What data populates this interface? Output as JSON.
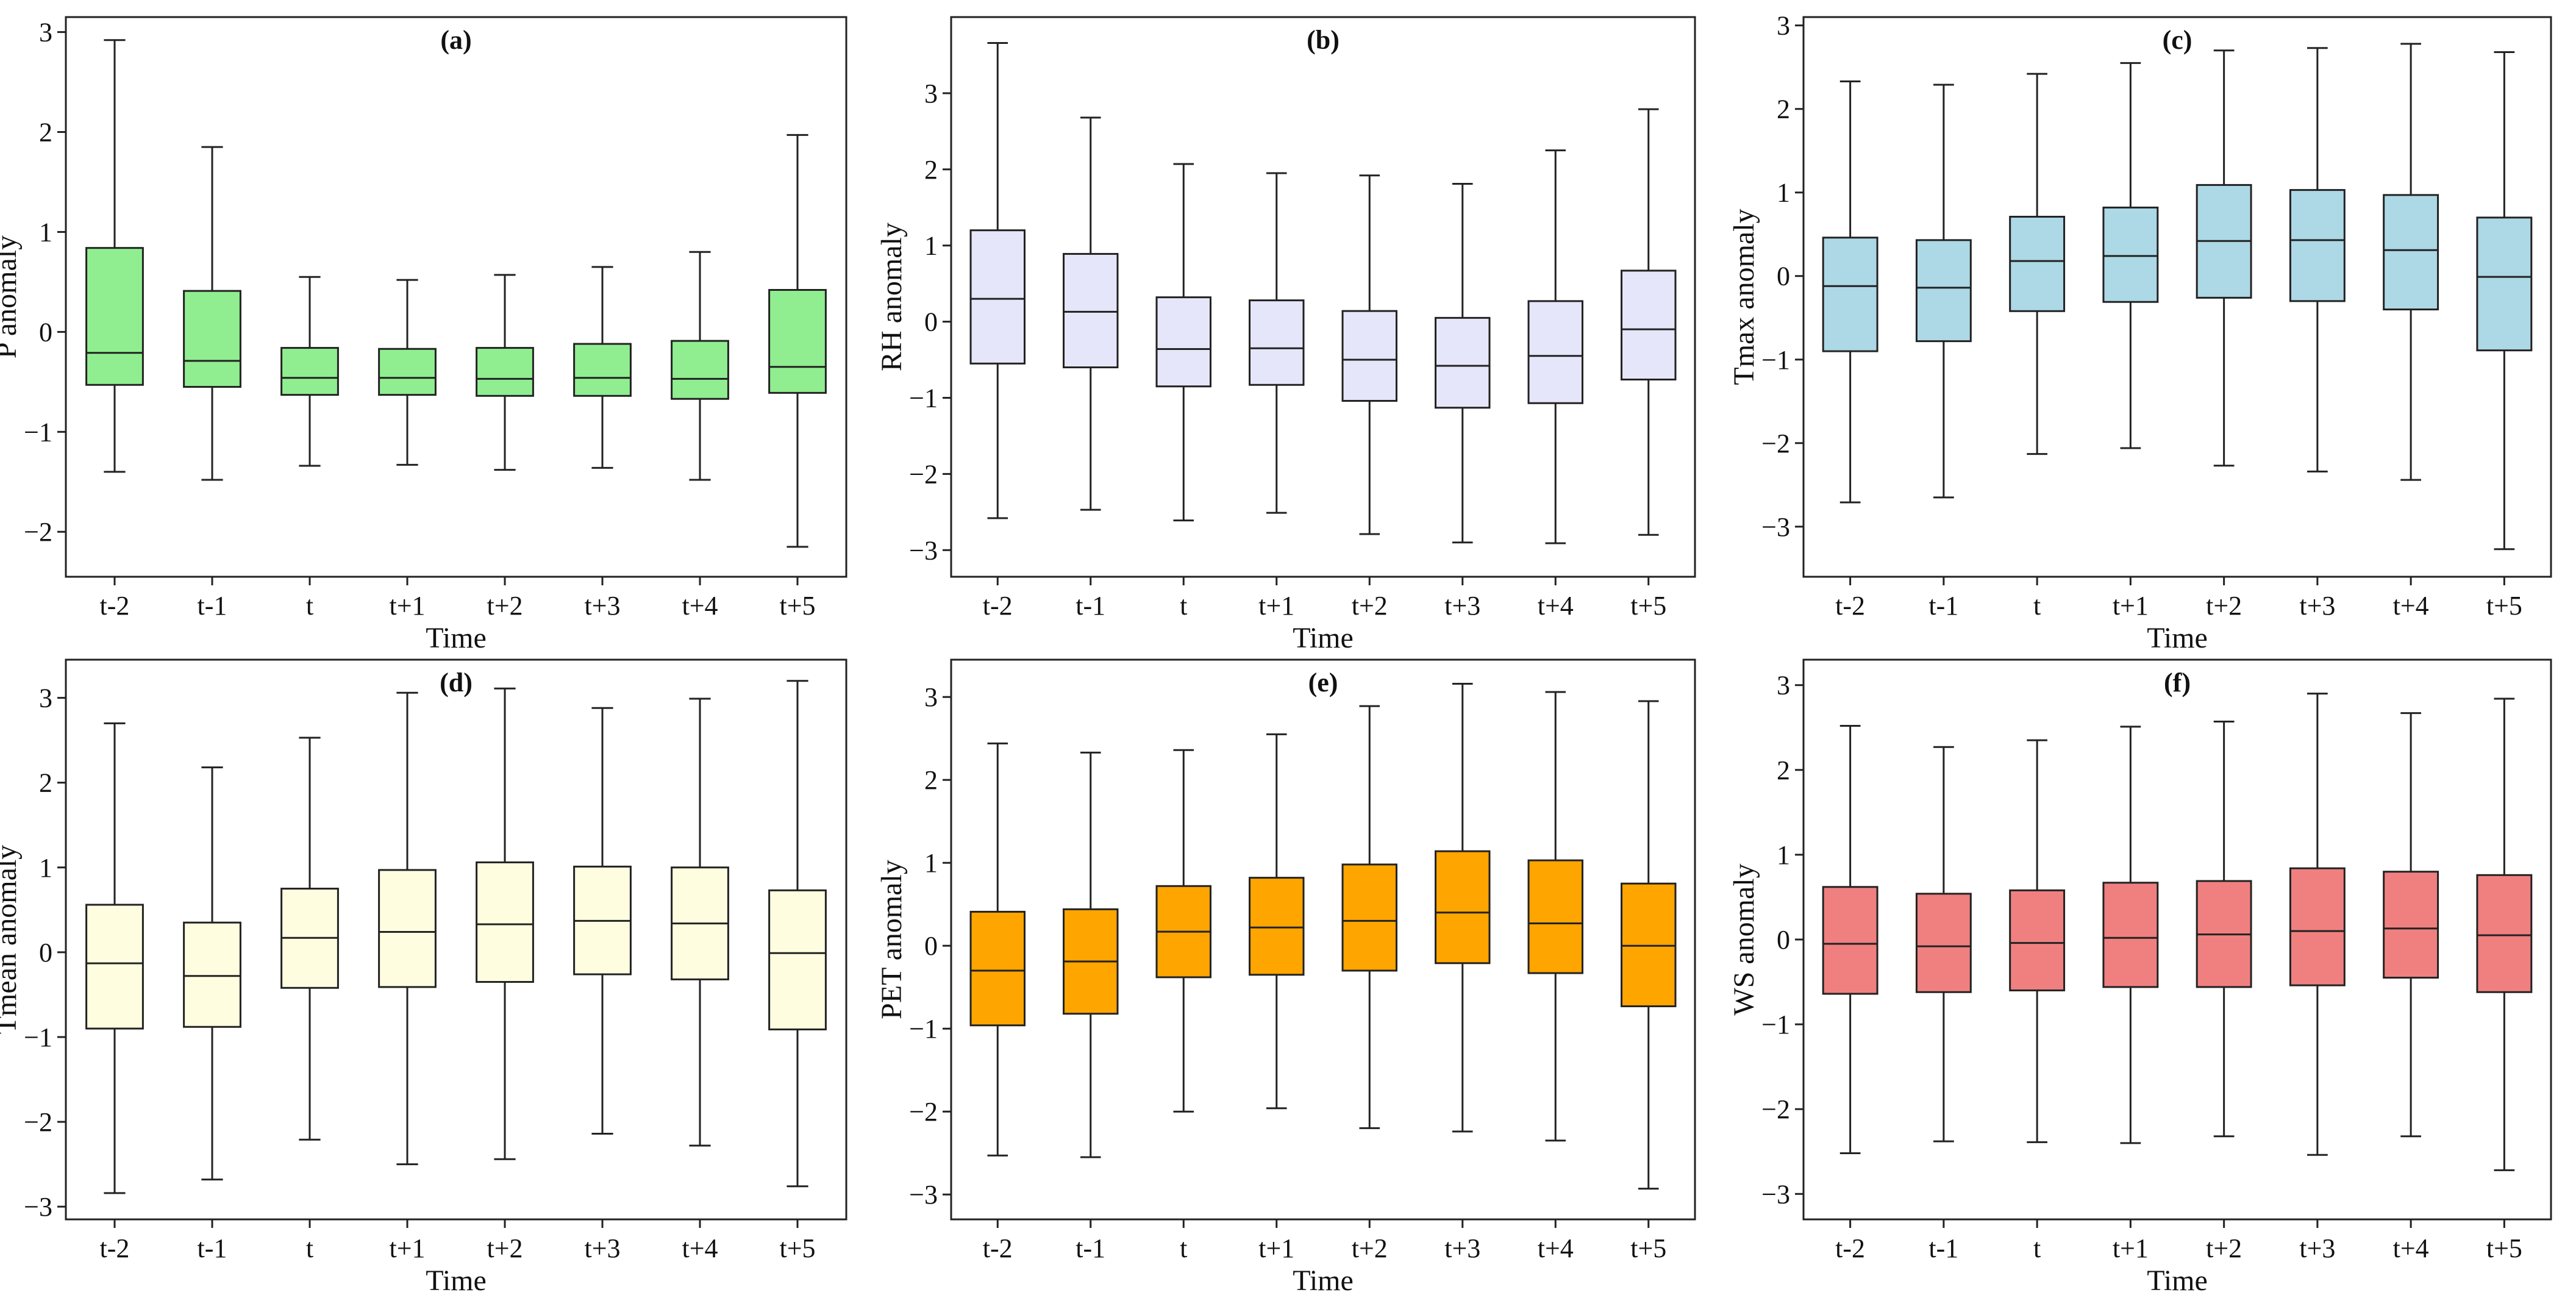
{
  "chart_data": [
    {
      "type": "box",
      "title": "(a)",
      "xlabel": "Time",
      "ylabel": "P anomaly",
      "color": "#90EE90",
      "ylim": [
        -2.45,
        3.15
      ],
      "yticks": [
        -2,
        -1,
        0,
        1,
        2,
        3
      ],
      "categories": [
        "t-2",
        "t-1",
        "t",
        "t+1",
        "t+2",
        "t+3",
        "t+4",
        "t+5"
      ],
      "boxes": [
        {
          "min": -1.4,
          "q1": -0.53,
          "median": -0.21,
          "q3": 0.84,
          "max": 2.92
        },
        {
          "min": -1.48,
          "q1": -0.55,
          "median": -0.29,
          "q3": 0.41,
          "max": 1.85
        },
        {
          "min": -1.34,
          "q1": -0.63,
          "median": -0.46,
          "q3": -0.16,
          "max": 0.55
        },
        {
          "min": -1.33,
          "q1": -0.63,
          "median": -0.46,
          "q3": -0.17,
          "max": 0.52
        },
        {
          "min": -1.38,
          "q1": -0.64,
          "median": -0.47,
          "q3": -0.16,
          "max": 0.57
        },
        {
          "min": -1.36,
          "q1": -0.64,
          "median": -0.46,
          "q3": -0.12,
          "max": 0.65
        },
        {
          "min": -1.48,
          "q1": -0.67,
          "median": -0.47,
          "q3": -0.09,
          "max": 0.8
        },
        {
          "min": -2.15,
          "q1": -0.61,
          "median": -0.35,
          "q3": 0.42,
          "max": 1.97
        }
      ]
    },
    {
      "type": "box",
      "title": "(b)",
      "xlabel": "Time",
      "ylabel": "RH anomaly",
      "color": "#E6E6FA",
      "ylim": [
        -3.35,
        4.0
      ],
      "yticks": [
        -3,
        -2,
        -1,
        0,
        1,
        2,
        3
      ],
      "categories": [
        "t-2",
        "t-1",
        "t",
        "t+1",
        "t+2",
        "t+3",
        "t+4",
        "t+5"
      ],
      "boxes": [
        {
          "min": -2.58,
          "q1": -0.55,
          "median": 0.3,
          "q3": 1.2,
          "max": 3.66
        },
        {
          "min": -2.47,
          "q1": -0.6,
          "median": 0.13,
          "q3": 0.89,
          "max": 2.68
        },
        {
          "min": -2.61,
          "q1": -0.85,
          "median": -0.36,
          "q3": 0.32,
          "max": 2.07
        },
        {
          "min": -2.51,
          "q1": -0.83,
          "median": -0.35,
          "q3": 0.28,
          "max": 1.95
        },
        {
          "min": -2.79,
          "q1": -1.04,
          "median": -0.5,
          "q3": 0.14,
          "max": 1.92
        },
        {
          "min": -2.9,
          "q1": -1.13,
          "median": -0.58,
          "q3": 0.05,
          "max": 1.81
        },
        {
          "min": -2.91,
          "q1": -1.07,
          "median": -0.45,
          "q3": 0.27,
          "max": 2.25
        },
        {
          "min": -2.8,
          "q1": -0.76,
          "median": -0.1,
          "q3": 0.67,
          "max": 2.79
        }
      ]
    },
    {
      "type": "box",
      "title": "(c)",
      "xlabel": "Time",
      "ylabel": "Tmax anomaly",
      "color": "#ADD8E6",
      "ylim": [
        -3.6,
        3.1
      ],
      "yticks": [
        -3,
        -2,
        -1,
        0,
        1,
        2,
        3
      ],
      "categories": [
        "t-2",
        "t-1",
        "t",
        "t+1",
        "t+2",
        "t+3",
        "t+4",
        "t+5"
      ],
      "boxes": [
        {
          "min": -2.71,
          "q1": -0.9,
          "median": -0.12,
          "q3": 0.46,
          "max": 2.33
        },
        {
          "min": -2.65,
          "q1": -0.78,
          "median": -0.14,
          "q3": 0.43,
          "max": 2.29
        },
        {
          "min": -2.13,
          "q1": -0.42,
          "median": 0.18,
          "q3": 0.71,
          "max": 2.42
        },
        {
          "min": -2.06,
          "q1": -0.31,
          "median": 0.24,
          "q3": 0.82,
          "max": 2.55
        },
        {
          "min": -2.27,
          "q1": -0.26,
          "median": 0.42,
          "q3": 1.09,
          "max": 2.7
        },
        {
          "min": -2.34,
          "q1": -0.3,
          "median": 0.43,
          "q3": 1.03,
          "max": 2.73
        },
        {
          "min": -2.44,
          "q1": -0.4,
          "median": 0.31,
          "q3": 0.97,
          "max": 2.78
        },
        {
          "min": -3.27,
          "q1": -0.89,
          "median": -0.01,
          "q3": 0.7,
          "max": 2.68
        }
      ]
    },
    {
      "type": "box",
      "title": "(d)",
      "xlabel": "Time",
      "ylabel": "Tmean anomaly",
      "color": "#FFFDE0",
      "ylim": [
        -3.15,
        3.45
      ],
      "yticks": [
        -3,
        -2,
        -1,
        0,
        1,
        2,
        3
      ],
      "categories": [
        "t-2",
        "t-1",
        "t",
        "t+1",
        "t+2",
        "t+3",
        "t+4",
        "t+5"
      ],
      "boxes": [
        {
          "min": -2.84,
          "q1": -0.9,
          "median": -0.13,
          "q3": 0.56,
          "max": 2.7
        },
        {
          "min": -2.68,
          "q1": -0.88,
          "median": -0.28,
          "q3": 0.35,
          "max": 2.18
        },
        {
          "min": -2.21,
          "q1": -0.42,
          "median": 0.17,
          "q3": 0.75,
          "max": 2.53
        },
        {
          "min": -2.5,
          "q1": -0.41,
          "median": 0.24,
          "q3": 0.97,
          "max": 3.06
        },
        {
          "min": -2.44,
          "q1": -0.35,
          "median": 0.33,
          "q3": 1.06,
          "max": 3.11
        },
        {
          "min": -2.14,
          "q1": -0.26,
          "median": 0.37,
          "q3": 1.01,
          "max": 2.88
        },
        {
          "min": -2.28,
          "q1": -0.32,
          "median": 0.34,
          "q3": 1.0,
          "max": 2.99
        },
        {
          "min": -2.76,
          "q1": -0.91,
          "median": -0.01,
          "q3": 0.73,
          "max": 3.2
        }
      ]
    },
    {
      "type": "box",
      "title": "(e)",
      "xlabel": "Time",
      "ylabel": "PET anomaly",
      "color": "#FFA500",
      "ylim": [
        -3.3,
        3.45
      ],
      "yticks": [
        -3,
        -2,
        -1,
        0,
        1,
        2,
        3
      ],
      "categories": [
        "t-2",
        "t-1",
        "t",
        "t+1",
        "t+2",
        "t+3",
        "t+4",
        "t+5"
      ],
      "boxes": [
        {
          "min": -2.53,
          "q1": -0.96,
          "median": -0.3,
          "q3": 0.41,
          "max": 2.44
        },
        {
          "min": -2.55,
          "q1": -0.82,
          "median": -0.19,
          "q3": 0.44,
          "max": 2.33
        },
        {
          "min": -2.0,
          "q1": -0.38,
          "median": 0.17,
          "q3": 0.72,
          "max": 2.36
        },
        {
          "min": -1.96,
          "q1": -0.35,
          "median": 0.22,
          "q3": 0.82,
          "max": 2.55
        },
        {
          "min": -2.2,
          "q1": -0.3,
          "median": 0.3,
          "q3": 0.98,
          "max": 2.89
        },
        {
          "min": -2.24,
          "q1": -0.21,
          "median": 0.4,
          "q3": 1.14,
          "max": 3.16
        },
        {
          "min": -2.35,
          "q1": -0.33,
          "median": 0.27,
          "q3": 1.03,
          "max": 3.06
        },
        {
          "min": -2.93,
          "q1": -0.73,
          "median": 0.0,
          "q3": 0.75,
          "max": 2.95
        }
      ]
    },
    {
      "type": "box",
      "title": "(f)",
      "xlabel": "Time",
      "ylabel": "WS anomaly",
      "color": "#F08080",
      "ylim": [
        -3.3,
        3.3
      ],
      "yticks": [
        -3,
        -2,
        -1,
        0,
        1,
        2,
        3
      ],
      "categories": [
        "t-2",
        "t-1",
        "t",
        "t+1",
        "t+2",
        "t+3",
        "t+4",
        "t+5"
      ],
      "boxes": [
        {
          "min": -2.52,
          "q1": -0.64,
          "median": -0.05,
          "q3": 0.62,
          "max": 2.52
        },
        {
          "min": -2.38,
          "q1": -0.62,
          "median": -0.08,
          "q3": 0.54,
          "max": 2.27
        },
        {
          "min": -2.39,
          "q1": -0.6,
          "median": -0.04,
          "q3": 0.58,
          "max": 2.35
        },
        {
          "min": -2.4,
          "q1": -0.56,
          "median": 0.02,
          "q3": 0.67,
          "max": 2.51
        },
        {
          "min": -2.32,
          "q1": -0.56,
          "median": 0.06,
          "q3": 0.69,
          "max": 2.57
        },
        {
          "min": -2.54,
          "q1": -0.54,
          "median": 0.1,
          "q3": 0.84,
          "max": 2.9
        },
        {
          "min": -2.32,
          "q1": -0.45,
          "median": 0.13,
          "q3": 0.8,
          "max": 2.67
        },
        {
          "min": -2.72,
          "q1": -0.62,
          "median": 0.05,
          "q3": 0.76,
          "max": 2.84
        }
      ]
    }
  ]
}
